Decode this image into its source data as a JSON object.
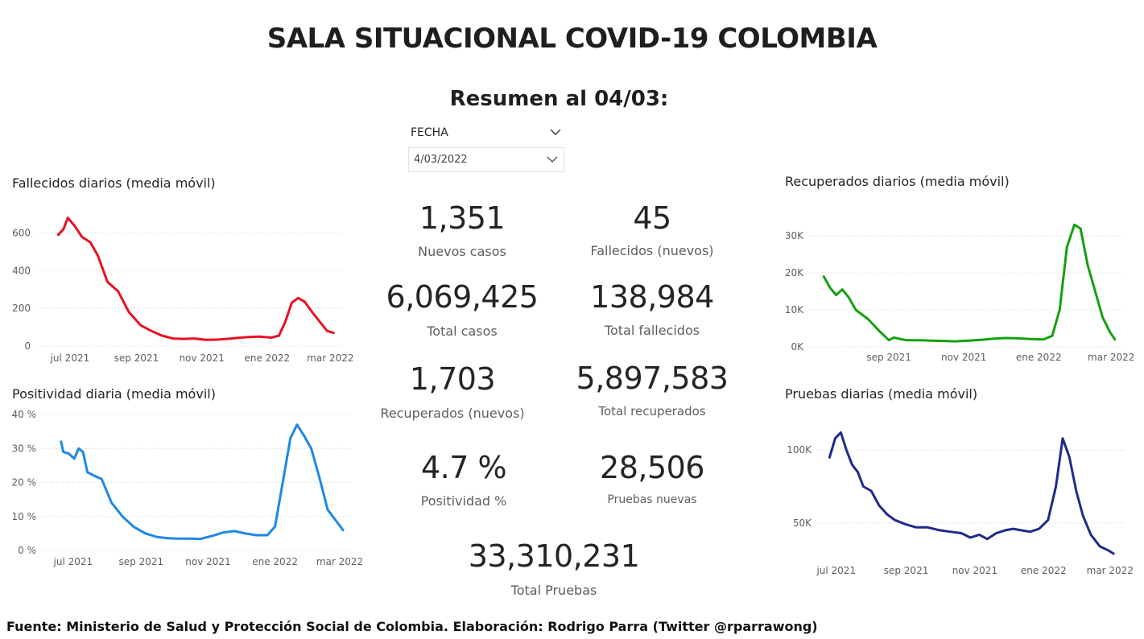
{
  "header": {
    "title": "SALA SITUACIONAL COVID-19 COLOMBIA",
    "summary": "Resumen al 04/03:"
  },
  "filter": {
    "label": "FECHA",
    "value": "4/03/2022"
  },
  "kpis": {
    "nuevos_casos": {
      "value": "1,351",
      "label": "Nuevos casos"
    },
    "fallecidos_nuevos": {
      "value": "45",
      "label": "Fallecidos (nuevos)"
    },
    "total_casos": {
      "value": "6,069,425",
      "label": "Total casos"
    },
    "total_fallecidos": {
      "value": "138,984",
      "label": "Total fallecidos"
    },
    "recuperados_nuevos": {
      "value": "1,703",
      "label": "Recuperados (nuevos)"
    },
    "total_recuperados": {
      "value": "5,897,583",
      "label": "Total recuperados"
    },
    "positividad": {
      "value": "4.7 %",
      "label": "Positividad %"
    },
    "pruebas_nuevas": {
      "value": "28,506",
      "label": "Pruebas nuevas"
    },
    "total_pruebas": {
      "value": "33,310,231",
      "label": "Total Pruebas"
    }
  },
  "footer": "Fuente: Ministerio de Salud y Protección Social de Colombia. Elaboración: Rodrigo Parra (Twitter @rparrawong)",
  "chart_data": [
    {
      "id": "fallecidos",
      "type": "line",
      "title": "Fallecidos diarios (media móvil)",
      "color": "#e81123",
      "x": [
        "2021-06-20",
        "2021-06-25",
        "2021-06-29",
        "2021-07-05",
        "2021-07-12",
        "2021-07-20",
        "2021-07-27",
        "2021-08-05",
        "2021-08-15",
        "2021-08-25",
        "2021-09-05",
        "2021-09-15",
        "2021-09-25",
        "2021-10-05",
        "2021-10-15",
        "2021-10-25",
        "2021-11-05",
        "2021-11-15",
        "2021-11-25",
        "2021-12-05",
        "2021-12-15",
        "2021-12-25",
        "2022-01-05",
        "2022-01-12",
        "2022-01-18",
        "2022-01-24",
        "2022-01-30",
        "2022-02-05",
        "2022-02-12",
        "2022-02-19",
        "2022-02-26",
        "2022-03-04"
      ],
      "y": [
        590,
        620,
        680,
        640,
        580,
        550,
        480,
        340,
        290,
        180,
        110,
        80,
        55,
        40,
        38,
        40,
        33,
        34,
        38,
        44,
        48,
        50,
        45,
        55,
        130,
        230,
        255,
        235,
        180,
        130,
        80,
        70
      ],
      "ylim": [
        0,
        700
      ],
      "yticks": [
        0,
        200,
        400,
        600
      ],
      "ytick_labels": [
        "0",
        "200",
        "400",
        "600"
      ],
      "xticks": [
        "2021-07-01",
        "2021-09-01",
        "2021-11-01",
        "2022-01-01",
        "2022-03-01"
      ],
      "xtick_labels": [
        "jul 2021",
        "sep 2021",
        "nov 2021",
        "ene 2022",
        "mar 2022"
      ],
      "xlim": [
        "2021-06-01",
        "2022-03-12"
      ]
    },
    {
      "id": "positividad",
      "type": "line",
      "title": "Positividad diaria (media móvil)",
      "color": "#1e88e5",
      "x": [
        "2021-06-20",
        "2021-06-22",
        "2021-06-27",
        "2021-07-02",
        "2021-07-06",
        "2021-07-10",
        "2021-07-14",
        "2021-07-20",
        "2021-07-27",
        "2021-08-05",
        "2021-08-15",
        "2021-08-25",
        "2021-09-05",
        "2021-09-15",
        "2021-09-25",
        "2021-10-05",
        "2021-10-15",
        "2021-10-25",
        "2021-11-05",
        "2021-11-15",
        "2021-11-25",
        "2021-12-05",
        "2021-12-15",
        "2021-12-25",
        "2022-01-01",
        "2022-01-08",
        "2022-01-15",
        "2022-01-21",
        "2022-01-27",
        "2022-02-03",
        "2022-02-10",
        "2022-02-18",
        "2022-02-25",
        "2022-03-04"
      ],
      "y": [
        32,
        29,
        28.5,
        27,
        30,
        29,
        23,
        22,
        21,
        14,
        10,
        7,
        5,
        4,
        3.6,
        3.5,
        3.5,
        3.4,
        4.3,
        5.3,
        5.7,
        5,
        4.5,
        4.5,
        7,
        20,
        33,
        37,
        34,
        30,
        22,
        12,
        9,
        6
      ],
      "ylim": [
        0,
        40
      ],
      "yticks": [
        0,
        10,
        20,
        30,
        40
      ],
      "ytick_labels": [
        "0 %",
        "10 %",
        "20 %",
        "30 %",
        "40 %"
      ],
      "xticks": [
        "2021-07-01",
        "2021-09-01",
        "2021-11-01",
        "2022-01-01",
        "2022-03-01"
      ],
      "xtick_labels": [
        "jul 2021",
        "sep 2021",
        "nov 2021",
        "ene 2022",
        "mar 2022"
      ],
      "xlim": [
        "2021-06-01",
        "2022-03-12"
      ]
    },
    {
      "id": "recuperados",
      "type": "line",
      "title": "Recuperados diarios (media móvil)",
      "color": "#13a10e",
      "x": [
        "2021-07-10",
        "2021-07-15",
        "2021-07-20",
        "2021-07-25",
        "2021-07-30",
        "2021-08-05",
        "2021-08-15",
        "2021-08-25",
        "2021-09-01",
        "2021-09-05",
        "2021-09-15",
        "2021-09-25",
        "2021-10-05",
        "2021-10-15",
        "2021-10-25",
        "2021-11-05",
        "2021-11-15",
        "2021-11-25",
        "2021-12-05",
        "2021-12-15",
        "2021-12-25",
        "2022-01-05",
        "2022-01-12",
        "2022-01-18",
        "2022-01-24",
        "2022-01-30",
        "2022-02-04",
        "2022-02-10",
        "2022-02-16",
        "2022-02-22",
        "2022-02-28",
        "2022-03-04"
      ],
      "y": [
        19000,
        16000,
        14000,
        15500,
        13500,
        10000,
        7500,
        4000,
        1800,
        2500,
        1800,
        1800,
        1700,
        1600,
        1500,
        1700,
        1900,
        2200,
        2400,
        2300,
        2100,
        2000,
        3000,
        10000,
        27000,
        33000,
        32000,
        22000,
        15000,
        8000,
        4000,
        2000
      ],
      "ylim": [
        0,
        33500
      ],
      "yticks": [
        0,
        10000,
        20000,
        30000
      ],
      "ytick_labels": [
        "0K",
        "10K",
        "20K",
        "30K"
      ],
      "xticks": [
        "2021-09-01",
        "2021-11-01",
        "2022-01-01",
        "2022-03-01"
      ],
      "xtick_labels": [
        "sep 2021",
        "nov 2021",
        "ene 2022",
        "mar 2022"
      ],
      "xlim": [
        "2021-06-28",
        "2022-03-12"
      ]
    },
    {
      "id": "pruebas",
      "type": "line",
      "title": "Pruebas diarias (media móvil)",
      "color": "#1f2a8c",
      "x": [
        "2021-06-25",
        "2021-06-30",
        "2021-07-05",
        "2021-07-10",
        "2021-07-15",
        "2021-07-20",
        "2021-07-25",
        "2021-08-01",
        "2021-08-08",
        "2021-08-15",
        "2021-08-22",
        "2021-09-01",
        "2021-09-10",
        "2021-09-20",
        "2021-10-01",
        "2021-10-10",
        "2021-10-20",
        "2021-10-28",
        "2021-11-05",
        "2021-11-12",
        "2021-11-20",
        "2021-11-28",
        "2021-12-05",
        "2021-12-12",
        "2021-12-20",
        "2021-12-28",
        "2022-01-05",
        "2022-01-12",
        "2022-01-18",
        "2022-01-24",
        "2022-01-30",
        "2022-02-05",
        "2022-02-12",
        "2022-02-20",
        "2022-02-28",
        "2022-03-04"
      ],
      "y": [
        95000,
        108000,
        112000,
        100000,
        90000,
        85000,
        75000,
        72000,
        62000,
        56000,
        52000,
        49000,
        47000,
        47000,
        45000,
        44000,
        43000,
        40000,
        42000,
        39000,
        43000,
        45000,
        46000,
        45000,
        44000,
        46000,
        52000,
        75000,
        108000,
        95000,
        72000,
        55000,
        42000,
        34000,
        31000,
        29000
      ],
      "ylim": [
        24000,
        115000
      ],
      "yticks": [
        50000,
        100000
      ],
      "ytick_labels": [
        "50K",
        "100K"
      ],
      "xticks": [
        "2021-07-01",
        "2021-09-01",
        "2021-11-01",
        "2022-01-01",
        "2022-03-01"
      ],
      "xtick_labels": [
        "jul 2021",
        "sep 2021",
        "nov 2021",
        "ene 2022",
        "mar 2022"
      ],
      "xlim": [
        "2021-06-14",
        "2022-03-14"
      ]
    }
  ]
}
